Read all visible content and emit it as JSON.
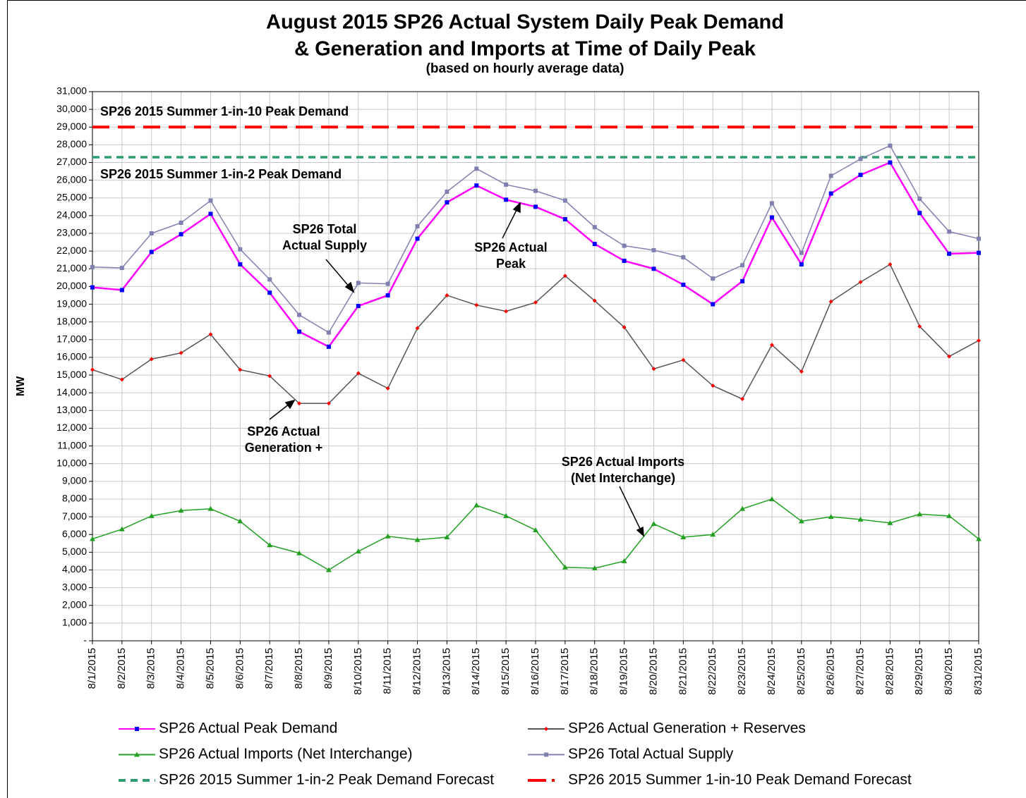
{
  "chart_data": {
    "type": "line",
    "title": [
      "August 2015 SP26 Actual System Daily Peak Demand",
      "& Generation and Imports at Time of Daily Peak"
    ],
    "subtitle": "(based on hourly average data)",
    "y_label": "MW",
    "categories": [
      "8/1/2015",
      "8/2/2015",
      "8/3/2015",
      "8/4/2015",
      "8/5/2015",
      "8/6/2015",
      "8/7/2015",
      "8/8/2015",
      "8/9/2015",
      "8/10/2015",
      "8/11/2015",
      "8/12/2015",
      "8/13/2015",
      "8/14/2015",
      "8/15/2015",
      "8/16/2015",
      "8/17/2015",
      "8/18/2015",
      "8/19/2015",
      "8/20/2015",
      "8/21/2015",
      "8/22/2015",
      "8/23/2015",
      "8/24/2015",
      "8/25/2015",
      "8/26/2015",
      "8/27/2015",
      "8/28/2015",
      "8/29/2015",
      "8/30/2015",
      "8/31/2015"
    ],
    "ylim": [
      0,
      31000
    ],
    "yticks": [
      {
        "value": 0,
        "label": "-"
      },
      {
        "value": 1000,
        "label": "1,000"
      },
      {
        "value": 2000,
        "label": "2,000"
      },
      {
        "value": 3000,
        "label": "3,000"
      },
      {
        "value": 4000,
        "label": "4,000"
      },
      {
        "value": 5000,
        "label": "5,000"
      },
      {
        "value": 6000,
        "label": "6,000"
      },
      {
        "value": 7000,
        "label": "7,000"
      },
      {
        "value": 8000,
        "label": "8,000"
      },
      {
        "value": 9000,
        "label": "9,000"
      },
      {
        "value": 10000,
        "label": "10,000"
      },
      {
        "value": 11000,
        "label": "11,000"
      },
      {
        "value": 12000,
        "label": "12,000"
      },
      {
        "value": 13000,
        "label": "13,000"
      },
      {
        "value": 14000,
        "label": "14,000"
      },
      {
        "value": 15000,
        "label": "15,000"
      },
      {
        "value": 16000,
        "label": "16,000"
      },
      {
        "value": 17000,
        "label": "17,000"
      },
      {
        "value": 18000,
        "label": "18,000"
      },
      {
        "value": 19000,
        "label": "19,000"
      },
      {
        "value": 20000,
        "label": "20,000"
      },
      {
        "value": 21000,
        "label": "21,000"
      },
      {
        "value": 22000,
        "label": "22,000"
      },
      {
        "value": 23000,
        "label": "23,000"
      },
      {
        "value": 24000,
        "label": "24,000"
      },
      {
        "value": 25000,
        "label": "25,000"
      },
      {
        "value": 26000,
        "label": "26,000"
      },
      {
        "value": 27000,
        "label": "27,000"
      },
      {
        "value": 28000,
        "label": "28,000"
      },
      {
        "value": 29000,
        "label": "29,000"
      },
      {
        "value": 30000,
        "label": "30,000"
      },
      {
        "value": 31000,
        "label": "31,000"
      }
    ],
    "grid": true,
    "series": [
      {
        "name": "SP26 Actual Peak Demand",
        "color": "#ff00ff",
        "marker": "square",
        "marker_color": "#0000ff",
        "values": [
          19950,
          19800,
          21950,
          22950,
          24100,
          21250,
          19650,
          17450,
          16600,
          18900,
          19500,
          22700,
          24750,
          25700,
          24900,
          24500,
          23800,
          22400,
          21450,
          21000,
          20100,
          19000,
          20300,
          23900,
          21250,
          25250,
          26300,
          27000,
          24150,
          21850,
          21900
        ]
      },
      {
        "name": "SP26 Actual Generation + Reserves",
        "color": "#555555",
        "marker": "diamond",
        "marker_color": "#ff0000",
        "values": [
          15300,
          14750,
          15900,
          16250,
          17300,
          15300,
          14950,
          13400,
          13400,
          15100,
          14250,
          17650,
          19500,
          18950,
          18600,
          19100,
          20600,
          19200,
          17700,
          15350,
          15850,
          14400,
          13650,
          16700,
          15200,
          19150,
          20250,
          21250,
          17750,
          16050,
          16950
        ]
      },
      {
        "name": "SP26 Actual Imports (Net Interchange)",
        "color": "#22a022",
        "marker": "triangle",
        "marker_color": "#22a022",
        "values": [
          5750,
          6300,
          7050,
          7350,
          7450,
          6750,
          5400,
          4950,
          4000,
          5050,
          5900,
          5700,
          5850,
          7650,
          7050,
          6250,
          4150,
          4100,
          4500,
          6600,
          5850,
          6000,
          7450,
          8000,
          6750,
          7000,
          6850,
          6650,
          7150,
          7050,
          5750
        ]
      },
      {
        "name": "SP26 Total Actual Supply",
        "color": "#8080b0",
        "marker": "square",
        "marker_color": "#8080b0",
        "values": [
          21100,
          21050,
          23000,
          23600,
          24850,
          22100,
          20400,
          18400,
          17400,
          20200,
          20150,
          23400,
          25350,
          26650,
          25750,
          25400,
          24850,
          23350,
          22300,
          22050,
          21650,
          20450,
          21200,
          24700,
          21900,
          26250,
          27200,
          27950,
          24950,
          23100,
          22700
        ]
      }
    ],
    "reference_lines": [
      {
        "name": "SP26 2015 Summer 1-in-2 Peak Demand Forecast",
        "value": 27300,
        "color": "#2e9e6e",
        "dash": "10 7"
      },
      {
        "name": "SP26 2015 Summer 1-in-10 Peak Demand Forecast",
        "value": 29000,
        "color": "#ff0000",
        "dash": "24 12"
      }
    ],
    "annotations": [
      [
        "SP26 2015  Summer 1-in-10 Peak Demand"
      ],
      [
        "SP26 2015  Summer 1-in-2 Peak Demand"
      ],
      [
        "SP26 Total",
        "Actual Supply"
      ],
      [
        "SP26 Actual",
        "Peak"
      ],
      [
        "SP26 Actual",
        "Generation +"
      ],
      [
        "SP26 Actual Imports",
        "(Net Interchange)"
      ]
    ]
  }
}
